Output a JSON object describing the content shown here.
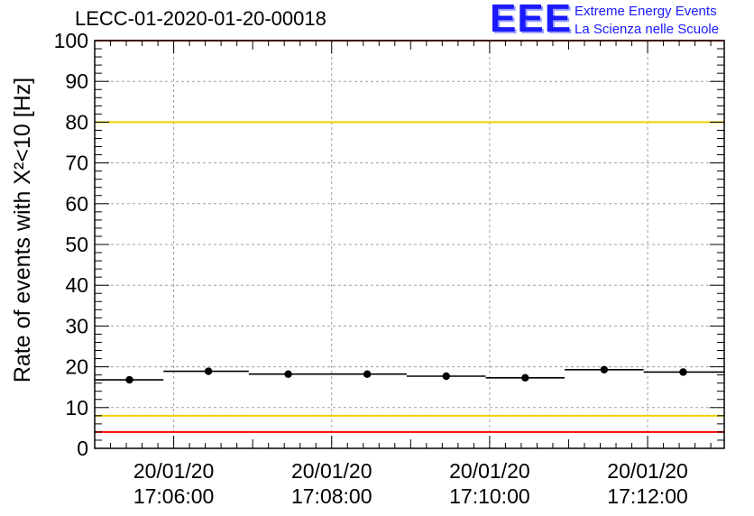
{
  "title": "LECC-01-2020-01-20-00018",
  "logo": {
    "mark": "EEE",
    "line1": "Extreme Energy Events",
    "line2": "La Scienza nelle Scuole"
  },
  "colors": {
    "red_line": "#ff0000",
    "yellow_line": "#f0d000",
    "points": "#000000",
    "grid": "#a0a0a0",
    "logo": "#1a1aff"
  },
  "chart_data": {
    "type": "scatter",
    "title": "LECC-01-2020-01-20-00018",
    "ylabel": "Rate of events with X²<10 [Hz]",
    "xlabel": "",
    "ylim": [
      0,
      100
    ],
    "y_ticks": [
      0,
      10,
      20,
      30,
      40,
      50,
      60,
      70,
      80,
      90,
      100
    ],
    "x_range_minutes": [
      -1.0,
      6.97
    ],
    "x_ticks": [
      {
        "minute": 0,
        "date": "20/01/20",
        "time": "17:06:00"
      },
      {
        "minute": 2,
        "date": "20/01/20",
        "time": "17:08:00"
      },
      {
        "minute": 4,
        "date": "20/01/20",
        "time": "17:10:00"
      },
      {
        "minute": 6,
        "date": "20/01/20",
        "time": "17:12:00"
      }
    ],
    "grid": true,
    "series": [
      {
        "bins": [
          {
            "x0": -1.0,
            "x1": -0.13,
            "xc": -0.56,
            "y": 16.8
          },
          {
            "x0": -0.13,
            "x1": 0.95,
            "xc": 0.44,
            "y": 18.9
          },
          {
            "x0": 0.95,
            "x1": 1.95,
            "xc": 1.45,
            "y": 18.2
          },
          {
            "x0": 1.95,
            "x1": 2.95,
            "xc": 2.45,
            "y": 18.2
          },
          {
            "x0": 2.95,
            "x1": 3.95,
            "xc": 3.45,
            "y": 17.7
          },
          {
            "x0": 3.95,
            "x1": 4.95,
            "xc": 4.45,
            "y": 17.3
          },
          {
            "x0": 4.95,
            "x1": 5.95,
            "xc": 5.45,
            "y": 19.3
          },
          {
            "x0": 5.95,
            "x1": 6.97,
            "xc": 6.45,
            "y": 18.7
          }
        ]
      }
    ],
    "reference_lines": [
      {
        "y": 100,
        "color": "red"
      },
      {
        "y": 4,
        "color": "red"
      },
      {
        "y": 80,
        "color": "yellow"
      },
      {
        "y": 8,
        "color": "yellow"
      }
    ]
  }
}
